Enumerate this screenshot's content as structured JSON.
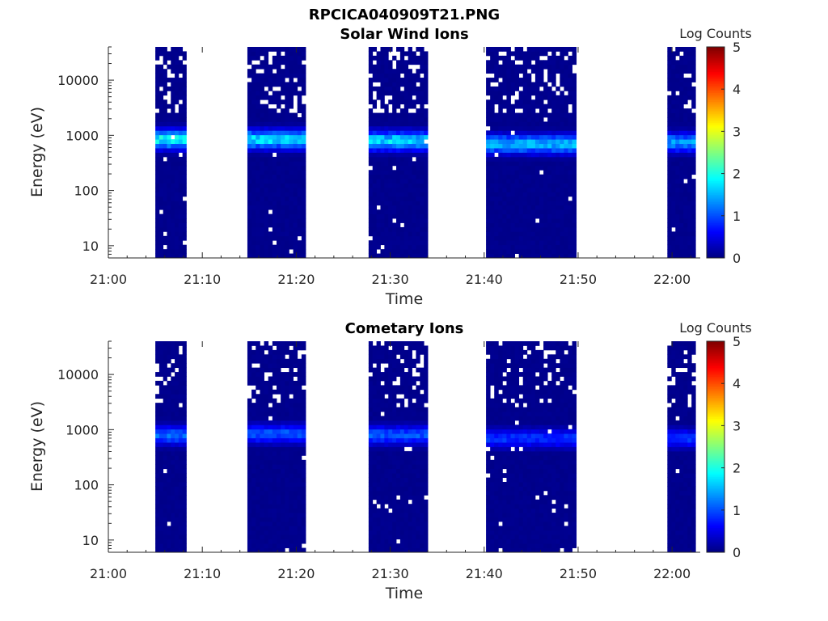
{
  "figure_title": "RPCICA040909T21.PNG",
  "chart_data": [
    {
      "type": "heatmap",
      "title": "Solar Wind Ions",
      "xlabel": "Time",
      "ylabel": "Energy (eV)",
      "x_tick_labels": [
        "21:00",
        "21:10",
        "21:20",
        "21:30",
        "21:40",
        "21:50",
        "22:00"
      ],
      "x_range_minutes": [
        0,
        63
      ],
      "yscale": "log",
      "ylim": [
        6,
        40000
      ],
      "y_tick_labels": [
        "10",
        "100",
        "1000",
        "10000"
      ],
      "y_tick_values": [
        10,
        100,
        1000,
        10000
      ],
      "colorbar": {
        "label": "Log Counts",
        "range": [
          0,
          5
        ],
        "tick_labels": [
          "0",
          "1",
          "2",
          "3",
          "4",
          "5"
        ],
        "colormap": "jet"
      },
      "data_blocks": [
        {
          "start": 5.0,
          "end": 8.3,
          "peak_energy": 850,
          "peak_log_counts": 2.2
        },
        {
          "start": 14.8,
          "end": 21.0,
          "peak_energy": 850,
          "peak_log_counts": 2.0
        },
        {
          "start": 27.7,
          "end": 34.0,
          "peak_energy": 800,
          "peak_log_counts": 2.0
        },
        {
          "start": 40.2,
          "end": 49.8,
          "peak_energy": 700,
          "peak_log_counts": 1.8
        },
        {
          "start": 59.5,
          "end": 62.5,
          "peak_energy": 750,
          "peak_log_counts": 1.6
        }
      ]
    },
    {
      "type": "heatmap",
      "title": "Cometary Ions",
      "xlabel": "Time",
      "ylabel": "Energy (eV)",
      "x_tick_labels": [
        "21:00",
        "21:10",
        "21:20",
        "21:30",
        "21:40",
        "21:50",
        "22:00"
      ],
      "x_range_minutes": [
        0,
        63
      ],
      "yscale": "log",
      "ylim": [
        6,
        40000
      ],
      "y_tick_labels": [
        "10",
        "100",
        "1000",
        "10000"
      ],
      "y_tick_values": [
        10,
        100,
        1000,
        10000
      ],
      "colorbar": {
        "label": "Log Counts",
        "range": [
          0,
          5
        ],
        "tick_labels": [
          "0",
          "1",
          "2",
          "3",
          "4",
          "5"
        ],
        "colormap": "jet"
      },
      "data_blocks": [
        {
          "start": 5.0,
          "end": 8.3,
          "peak_energy": 800,
          "peak_log_counts": 1.3
        },
        {
          "start": 14.8,
          "end": 21.0,
          "peak_energy": 850,
          "peak_log_counts": 1.2
        },
        {
          "start": 27.7,
          "end": 34.0,
          "peak_energy": 800,
          "peak_log_counts": 1.2
        },
        {
          "start": 40.2,
          "end": 49.8,
          "peak_energy": 700,
          "peak_log_counts": 1.0
        },
        {
          "start": 59.5,
          "end": 62.5,
          "peak_energy": 700,
          "peak_log_counts": 1.0
        }
      ]
    }
  ]
}
